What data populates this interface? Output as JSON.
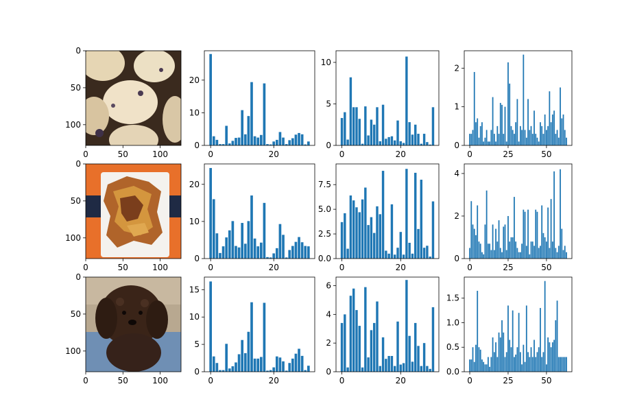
{
  "bar_color": "#1f77b4",
  "chart_data": [
    {
      "type": "image",
      "row": 0,
      "col": 0,
      "depicts": "blueberry muffins",
      "xlim": [
        0,
        128
      ],
      "ylim": [
        0,
        128
      ],
      "xticks": [
        0,
        50,
        100
      ],
      "yticks": [
        0,
        50,
        100
      ]
    },
    {
      "type": "bar",
      "row": 0,
      "col": 1,
      "ylim": [
        0,
        29
      ],
      "xticks": [
        0,
        20
      ],
      "yticks": [
        0,
        10,
        20
      ],
      "values": [
        28.0,
        2.8,
        1.7,
        0.4,
        0.4,
        6.0,
        0.6,
        1.4,
        2.3,
        2.4,
        10.8,
        3.4,
        9.0,
        19.4,
        2.8,
        2.4,
        3.2,
        19.0,
        0.4,
        0.3,
        1.2,
        1.7,
        4.1,
        2.4,
        0.4,
        1.6,
        2.2,
        3.3,
        3.8,
        3.4,
        0.3,
        1.2
      ]
    },
    {
      "type": "bar",
      "row": 0,
      "col": 2,
      "ylim": [
        0,
        11.4
      ],
      "xticks": [
        0,
        20
      ],
      "yticks": [
        0,
        5,
        10
      ],
      "values": [
        3.3,
        4.0,
        0.7,
        8.2,
        4.6,
        4.6,
        3.2,
        0.2,
        4.7,
        1.2,
        3.1,
        2.5,
        4.6,
        0.5,
        4.9,
        0.8,
        1.0,
        1.1,
        0.6,
        3.0,
        0.5,
        0.3,
        10.7,
        2.8,
        1.3,
        2.5,
        1.4,
        0.2,
        1.4,
        0.4,
        0.1,
        4.6
      ]
    },
    {
      "type": "bar",
      "row": 0,
      "col": 3,
      "ylim": [
        0,
        2.45
      ],
      "xticks": [
        0,
        25,
        50
      ],
      "yticks": [
        0,
        1,
        2
      ],
      "values": [
        0.3,
        0.3,
        0.4,
        1.9,
        0.6,
        0.7,
        0.2,
        0.5,
        0.6,
        0.1,
        0.2,
        0.4,
        0.1,
        0.1,
        0.4,
        1.25,
        0.3,
        0.1,
        0.5,
        0.3,
        1.1,
        1.05,
        0.3,
        1.0,
        0.1,
        2.15,
        1.6,
        0.5,
        0.4,
        0.3,
        0.6,
        1.2,
        0.1,
        0.5,
        0.4,
        2.35,
        0.4,
        0.2,
        1.2,
        0.4,
        0.5,
        0.3,
        0.9,
        0.3,
        0.2,
        0.1,
        0.6,
        0.5,
        0.3,
        0.8,
        0.4,
        0.5,
        1.4,
        0.6,
        0.8,
        0.9,
        0.3,
        0.4,
        0.2,
        1.5,
        0.7,
        0.8,
        0.4,
        0.2
      ]
    },
    {
      "type": "image",
      "row": 1,
      "col": 0,
      "depicts": "fried chips on a plate",
      "xlim": [
        0,
        128
      ],
      "ylim": [
        0,
        128
      ],
      "xticks": [
        0,
        50,
        100
      ],
      "yticks": [
        0,
        50,
        100
      ]
    },
    {
      "type": "bar",
      "row": 1,
      "col": 1,
      "ylim": [
        0,
        25.5
      ],
      "xticks": [
        0,
        20
      ],
      "yticks": [
        0,
        10,
        20
      ],
      "values": [
        24.4,
        16.0,
        6.8,
        1.5,
        3.3,
        5.7,
        7.6,
        10.1,
        3.4,
        3.0,
        9.6,
        4.0,
        10.1,
        17.0,
        5.4,
        3.3,
        4.3,
        15.0,
        0.4,
        0.3,
        1.4,
        2.8,
        9.3,
        6.4,
        0.3,
        2.3,
        3.4,
        4.5,
        5.8,
        4.4,
        3.4,
        3.3
      ]
    },
    {
      "type": "bar",
      "row": 1,
      "col": 2,
      "ylim": [
        0,
        9.6
      ],
      "xticks": [
        0,
        20
      ],
      "yticks": [
        0,
        2.5,
        5.0,
        7.5
      ],
      "values": [
        3.7,
        4.6,
        1.0,
        6.4,
        5.9,
        5.2,
        4.7,
        6.0,
        7.2,
        3.4,
        4.2,
        2.6,
        5.3,
        4.5,
        8.9,
        0.8,
        0.5,
        5.5,
        0.4,
        1.1,
        2.7,
        0.4,
        9.1,
        1.6,
        0.5,
        8.7,
        3.0,
        8.0,
        1.1,
        1.3,
        0.2,
        5.8
      ]
    },
    {
      "type": "bar",
      "row": 1,
      "col": 3,
      "ylim": [
        0,
        4.45
      ],
      "xticks": [
        0,
        25,
        50
      ],
      "yticks": [
        0,
        2,
        4
      ],
      "values": [
        0.5,
        2.7,
        1.6,
        1.4,
        1.1,
        2.5,
        0.8,
        0.7,
        0.3,
        0.2,
        1.6,
        3.2,
        0.7,
        0.7,
        0.4,
        1.6,
        0.4,
        1.4,
        0.8,
        1.8,
        0.5,
        0.3,
        1.5,
        1.6,
        0.4,
        2.0,
        0.8,
        1.0,
        1.0,
        2.9,
        0.8,
        0.5,
        0.3,
        0.3,
        0.7,
        2.3,
        2.2,
        0.6,
        2.3,
        0.2,
        0.8,
        0.8,
        0.6,
        2.3,
        2.2,
        0.5,
        0.6,
        2.5,
        1.2,
        1.0,
        0.8,
        2.4,
        0.5,
        2.8,
        0.8,
        4.1,
        0.5,
        0.3,
        0.6,
        4.2,
        1.4,
        0.4,
        0.6,
        0.3
      ]
    },
    {
      "type": "image",
      "row": 2,
      "col": 0,
      "depicts": "brown curly-haired puppy",
      "xlim": [
        0,
        128
      ],
      "ylim": [
        0,
        128
      ],
      "xticks": [
        0,
        50,
        100
      ],
      "yticks": [
        0,
        50,
        100
      ]
    },
    {
      "type": "bar",
      "row": 2,
      "col": 1,
      "ylim": [
        0,
        17.3
      ],
      "xticks": [
        0,
        20
      ],
      "yticks": [
        0,
        5,
        10,
        15
      ],
      "values": [
        16.5,
        2.8,
        1.6,
        0.3,
        0.3,
        5.1,
        0.6,
        1.0,
        1.7,
        3.2,
        5.8,
        3.4,
        7.3,
        12.7,
        2.4,
        2.4,
        2.7,
        12.6,
        0.2,
        0.3,
        0.8,
        2.8,
        2.6,
        1.9,
        0.2,
        1.6,
        2.4,
        3.3,
        4.2,
        2.9,
        0.3,
        1.1
      ]
    },
    {
      "type": "bar",
      "row": 2,
      "col": 2,
      "ylim": [
        0,
        6.6
      ],
      "xticks": [
        0,
        20
      ],
      "yticks": [
        0,
        2,
        4,
        6
      ],
      "values": [
        3.4,
        4.0,
        0.3,
        5.3,
        5.8,
        4.3,
        3.2,
        0.3,
        5.9,
        1.0,
        2.9,
        3.4,
        4.9,
        0.4,
        2.4,
        0.9,
        1.1,
        1.1,
        0.4,
        3.5,
        0.5,
        0.6,
        6.4,
        2.5,
        0.7,
        3.4,
        1.8,
        0.4,
        2.0,
        0.4,
        0.2,
        4.5
      ]
    },
    {
      "type": "bar",
      "row": 2,
      "col": 3,
      "ylim": [
        0,
        1.93
      ],
      "xticks": [
        0,
        25,
        50
      ],
      "yticks": [
        0,
        0.5,
        1.0,
        1.5
      ],
      "values": [
        0.25,
        0.25,
        0.5,
        0.2,
        0.55,
        1.65,
        0.5,
        0.45,
        0.25,
        0.2,
        0.15,
        0.15,
        0.3,
        0.1,
        0.3,
        0.7,
        0.4,
        0.6,
        0.3,
        0.8,
        0.7,
        1.05,
        0.8,
        0.3,
        0.4,
        1.35,
        0.65,
        0.5,
        1.25,
        0.3,
        0.35,
        0.5,
        1.2,
        0.4,
        0.15,
        0.55,
        0.2,
        1.35,
        0.4,
        0.3,
        0.5,
        0.3,
        0.65,
        0.3,
        0.4,
        0.5,
        1.3,
        0.3,
        0.4,
        1.85,
        0.15,
        0.7,
        0.6,
        0.5,
        0.6,
        0.65,
        1.05,
        1.45,
        0.3,
        0.3,
        0.3,
        0.3,
        0.3,
        0.3
      ]
    }
  ]
}
